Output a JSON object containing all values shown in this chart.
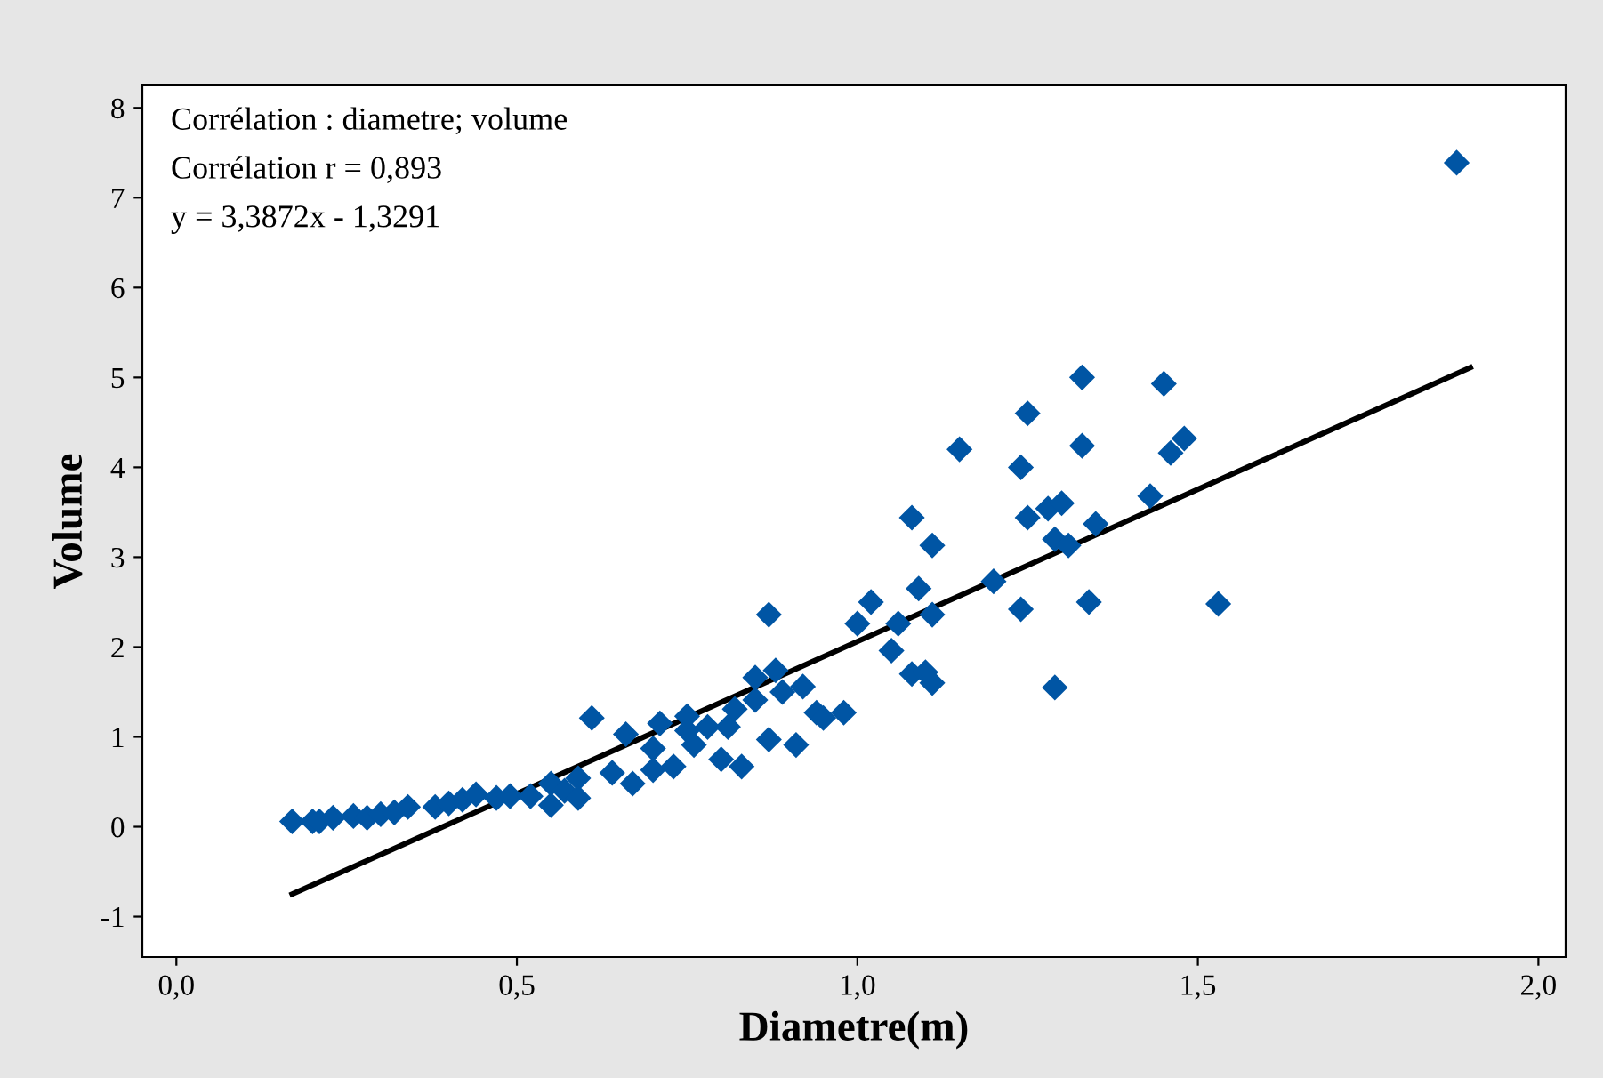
{
  "chart_data": {
    "type": "scatter",
    "xlabel": "Diametre(m)",
    "ylabel": "Volume",
    "annotations": [
      "Corrélation : diametre; volume",
      "Corrélation r = 0,893",
      "y = 3,3872x - 1,3291"
    ],
    "xlim": [
      -0.05,
      2.04
    ],
    "ylim": [
      -1.45,
      8.25
    ],
    "xticks": [
      {
        "value": 0,
        "label": "0,0"
      },
      {
        "value": 0.5,
        "label": "0,5"
      },
      {
        "value": 1,
        "label": "1,0"
      },
      {
        "value": 1.5,
        "label": "1,5"
      },
      {
        "value": 2,
        "label": "2,0"
      }
    ],
    "yticks": [
      -1,
      0,
      1,
      2,
      3,
      4,
      5,
      6,
      7,
      8
    ],
    "grid": false,
    "legend": false,
    "series": [
      {
        "marker": "diamond",
        "color": "#0055a4",
        "x": [
          0.17,
          0.2,
          0.21,
          0.23,
          0.26,
          0.28,
          0.3,
          0.32,
          0.34,
          0.38,
          0.4,
          0.42,
          0.44,
          0.47,
          0.49,
          0.52,
          0.55,
          0.55,
          0.57,
          0.59,
          0.59,
          0.61,
          0.64,
          0.67,
          0.66,
          0.7,
          0.7,
          0.71,
          0.73,
          0.75,
          0.75,
          0.76,
          0.78,
          0.8,
          0.81,
          0.82,
          0.83,
          0.85,
          0.85,
          0.87,
          0.87,
          0.88,
          0.89,
          0.92,
          0.91,
          0.94,
          0.95,
          0.98,
          1.0,
          1.02,
          1.05,
          1.06,
          1.08,
          1.08,
          1.09,
          1.1,
          1.11,
          1.11,
          1.11,
          1.15,
          1.2,
          1.24,
          1.24,
          1.25,
          1.25,
          1.28,
          1.29,
          1.29,
          1.3,
          1.31,
          1.33,
          1.33,
          1.34,
          1.35,
          1.43,
          1.45,
          1.46,
          1.48,
          1.53,
          1.88
        ],
        "values": [
          0.06,
          0.06,
          0.06,
          0.1,
          0.12,
          0.1,
          0.14,
          0.16,
          0.22,
          0.22,
          0.26,
          0.3,
          0.36,
          0.32,
          0.34,
          0.34,
          0.48,
          0.24,
          0.4,
          0.54,
          0.32,
          1.21,
          0.6,
          0.48,
          1.03,
          0.87,
          0.63,
          1.15,
          0.67,
          1.07,
          1.23,
          0.91,
          1.11,
          0.75,
          1.11,
          1.31,
          0.67,
          1.41,
          1.66,
          0.97,
          2.36,
          1.74,
          1.5,
          1.56,
          0.91,
          1.27,
          1.21,
          1.27,
          2.26,
          2.5,
          1.96,
          2.26,
          3.44,
          1.7,
          2.65,
          1.72,
          2.36,
          3.13,
          1.6,
          4.2,
          2.73,
          2.42,
          4.0,
          4.6,
          3.44,
          3.54,
          3.2,
          1.55,
          3.6,
          3.13,
          5.0,
          4.24,
          2.5,
          3.37,
          3.68,
          4.93,
          4.16,
          4.32,
          2.48,
          7.39
        ]
      },
      {
        "type": "line",
        "color": "#000000",
        "x": [
          0.17,
          1.9
        ],
        "values": [
          -0.75,
          5.11
        ]
      }
    ]
  }
}
